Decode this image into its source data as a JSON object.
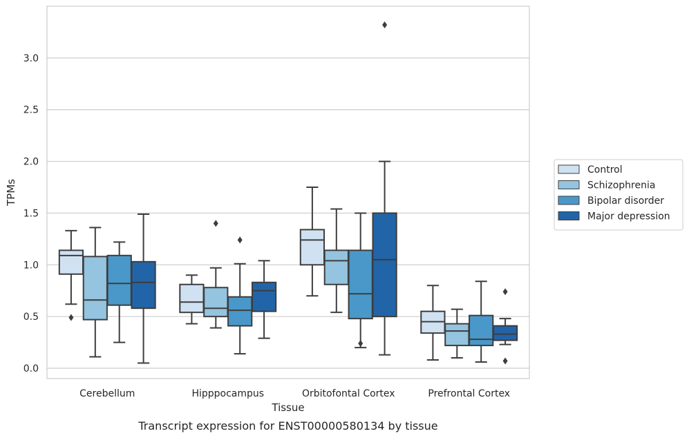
{
  "chart_data": {
    "type": "boxplot",
    "xlabel": "Tissue",
    "ylabel": "TPMs",
    "caption": "Transcript expression for ENST00000580134 by tissue",
    "ylim": [
      -0.1,
      3.5
    ],
    "yticks": [
      0.0,
      0.5,
      1.0,
      1.5,
      2.0,
      2.5,
      3.0
    ],
    "ytick_labels": [
      "0.0",
      "0.5",
      "1.0",
      "1.5",
      "2.0",
      "2.5",
      "3.0"
    ],
    "grid": "horizontal",
    "legend_position": "right",
    "categories": [
      "Cerebellum",
      "Hipppocampus",
      "Orbitofontal Cortex",
      "Prefrontal Cortex"
    ],
    "series": [
      {
        "name": "Control",
        "color": "#d0e1f2",
        "boxes": [
          {
            "whisker_low": 0.62,
            "q1": 0.91,
            "median": 1.09,
            "q3": 1.14,
            "whisker_high": 1.33,
            "outliers": [
              0.49
            ]
          },
          {
            "whisker_low": 0.43,
            "q1": 0.54,
            "median": 0.64,
            "q3": 0.81,
            "whisker_high": 0.9,
            "outliers": []
          },
          {
            "whisker_low": 0.7,
            "q1": 1.0,
            "median": 1.24,
            "q3": 1.34,
            "whisker_high": 1.75,
            "outliers": []
          },
          {
            "whisker_low": 0.08,
            "q1": 0.34,
            "median": 0.45,
            "q3": 0.55,
            "whisker_high": 0.8,
            "outliers": []
          }
        ]
      },
      {
        "name": "Schizophrenia",
        "color": "#94c4df",
        "boxes": [
          {
            "whisker_low": 0.11,
            "q1": 0.47,
            "median": 0.66,
            "q3": 1.08,
            "whisker_high": 1.36,
            "outliers": []
          },
          {
            "whisker_low": 0.39,
            "q1": 0.5,
            "median": 0.58,
            "q3": 0.78,
            "whisker_high": 0.97,
            "outliers": [
              1.4
            ]
          },
          {
            "whisker_low": 0.54,
            "q1": 0.81,
            "median": 1.04,
            "q3": 1.14,
            "whisker_high": 1.54,
            "outliers": []
          },
          {
            "whisker_low": 0.1,
            "q1": 0.22,
            "median": 0.36,
            "q3": 0.43,
            "whisker_high": 0.57,
            "outliers": []
          }
        ]
      },
      {
        "name": "Bipolar disorder",
        "color": "#4a98c9",
        "boxes": [
          {
            "whisker_low": 0.25,
            "q1": 0.61,
            "median": 0.82,
            "q3": 1.09,
            "whisker_high": 1.22,
            "outliers": []
          },
          {
            "whisker_low": 0.14,
            "q1": 0.41,
            "median": 0.56,
            "q3": 0.69,
            "whisker_high": 1.01,
            "outliers": [
              1.24
            ]
          },
          {
            "whisker_low": 0.2,
            "q1": 0.48,
            "median": 0.72,
            "q3": 1.14,
            "whisker_high": 1.5,
            "outliers": [
              0.24
            ]
          },
          {
            "whisker_low": 0.06,
            "q1": 0.22,
            "median": 0.28,
            "q3": 0.51,
            "whisker_high": 0.84,
            "outliers": []
          }
        ]
      },
      {
        "name": "Major depression",
        "color": "#2264a8",
        "boxes": [
          {
            "whisker_low": 0.05,
            "q1": 0.58,
            "median": 0.83,
            "q3": 1.03,
            "whisker_high": 1.49,
            "outliers": []
          },
          {
            "whisker_low": 0.29,
            "q1": 0.55,
            "median": 0.75,
            "q3": 0.83,
            "whisker_high": 1.04,
            "outliers": []
          },
          {
            "whisker_low": 0.13,
            "q1": 0.5,
            "median": 1.05,
            "q3": 1.5,
            "whisker_high": 2.0,
            "outliers": [
              3.32
            ]
          },
          {
            "whisker_low": 0.23,
            "q1": 0.27,
            "median": 0.33,
            "q3": 0.41,
            "whisker_high": 0.48,
            "outliers": [
              0.07,
              0.74
            ]
          }
        ]
      }
    ]
  }
}
